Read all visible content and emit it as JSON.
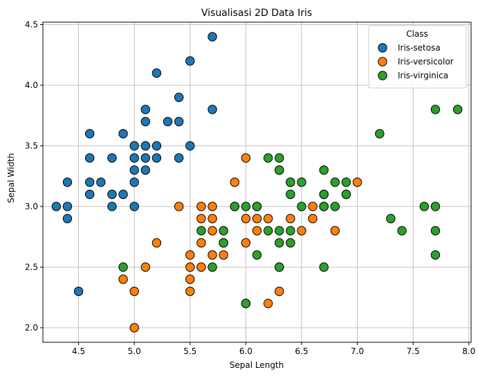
{
  "chart_data": {
    "type": "scatter",
    "title": "Visualisasi 2D Data Iris",
    "xlabel": "Sepal Length",
    "ylabel": "Sepal Width",
    "xlim": [
      4.18,
      8.02
    ],
    "ylim": [
      1.88,
      4.52
    ],
    "xticks": [
      "4.5",
      "5.0",
      "5.5",
      "6.0",
      "6.5",
      "7.0",
      "7.5",
      "8.0"
    ],
    "yticks": [
      "2.0",
      "2.5",
      "3.0",
      "3.5",
      "4.0",
      "4.5"
    ],
    "grid": true,
    "legend": {
      "title": "Class",
      "placement": "top-right"
    },
    "series": [
      {
        "name": "Iris-setosa",
        "color": "#1f77b4",
        "points": [
          [
            4.3,
            3.0
          ],
          [
            4.4,
            2.9
          ],
          [
            4.4,
            3.0
          ],
          [
            4.4,
            3.2
          ],
          [
            4.5,
            2.3
          ],
          [
            4.6,
            3.1
          ],
          [
            4.6,
            3.2
          ],
          [
            4.6,
            3.4
          ],
          [
            4.6,
            3.6
          ],
          [
            4.7,
            3.2
          ],
          [
            4.8,
            3.0
          ],
          [
            4.8,
            3.1
          ],
          [
            4.8,
            3.4
          ],
          [
            4.9,
            3.1
          ],
          [
            4.9,
            3.6
          ],
          [
            5.0,
            3.0
          ],
          [
            5.0,
            3.2
          ],
          [
            5.0,
            3.3
          ],
          [
            5.0,
            3.4
          ],
          [
            5.0,
            3.5
          ],
          [
            5.1,
            3.3
          ],
          [
            5.1,
            3.4
          ],
          [
            5.1,
            3.5
          ],
          [
            5.1,
            3.7
          ],
          [
            5.1,
            3.8
          ],
          [
            5.2,
            3.4
          ],
          [
            5.2,
            3.5
          ],
          [
            5.2,
            4.1
          ],
          [
            5.3,
            3.7
          ],
          [
            5.4,
            3.4
          ],
          [
            5.4,
            3.7
          ],
          [
            5.4,
            3.9
          ],
          [
            5.5,
            3.5
          ],
          [
            5.5,
            4.2
          ],
          [
            5.7,
            3.8
          ],
          [
            5.7,
            4.4
          ]
        ]
      },
      {
        "name": "Iris-versicolor",
        "color": "#ff7f0e",
        "points": [
          [
            4.9,
            2.4
          ],
          [
            5.0,
            2.0
          ],
          [
            5.0,
            2.3
          ],
          [
            5.1,
            2.5
          ],
          [
            5.2,
            2.7
          ],
          [
            5.4,
            3.0
          ],
          [
            5.5,
            2.3
          ],
          [
            5.5,
            2.4
          ],
          [
            5.5,
            2.5
          ],
          [
            5.5,
            2.6
          ],
          [
            5.6,
            2.5
          ],
          [
            5.6,
            2.7
          ],
          [
            5.6,
            2.9
          ],
          [
            5.6,
            3.0
          ],
          [
            5.7,
            2.6
          ],
          [
            5.7,
            2.8
          ],
          [
            5.7,
            2.9
          ],
          [
            5.7,
            3.0
          ],
          [
            5.8,
            2.6
          ],
          [
            5.8,
            2.7
          ],
          [
            5.9,
            3.0
          ],
          [
            5.9,
            3.2
          ],
          [
            6.0,
            2.2
          ],
          [
            6.0,
            2.7
          ],
          [
            6.0,
            2.9
          ],
          [
            6.0,
            3.4
          ],
          [
            6.1,
            2.8
          ],
          [
            6.1,
            2.9
          ],
          [
            6.1,
            3.0
          ],
          [
            6.2,
            2.2
          ],
          [
            6.2,
            2.9
          ],
          [
            6.3,
            2.3
          ],
          [
            6.3,
            2.5
          ],
          [
            6.3,
            3.3
          ],
          [
            6.4,
            2.9
          ],
          [
            6.4,
            3.2
          ],
          [
            6.5,
            2.8
          ],
          [
            6.6,
            2.9
          ],
          [
            6.6,
            3.0
          ],
          [
            6.7,
            3.0
          ],
          [
            6.7,
            3.1
          ],
          [
            6.8,
            2.8
          ],
          [
            6.9,
            3.1
          ],
          [
            7.0,
            3.2
          ]
        ]
      },
      {
        "name": "Iris-virginica",
        "color": "#2ca02c",
        "points": [
          [
            4.9,
            2.5
          ],
          [
            5.6,
            2.8
          ],
          [
            5.7,
            2.5
          ],
          [
            5.8,
            2.7
          ],
          [
            5.8,
            2.8
          ],
          [
            5.9,
            3.0
          ],
          [
            6.0,
            2.2
          ],
          [
            6.0,
            3.0
          ],
          [
            6.1,
            2.6
          ],
          [
            6.1,
            3.0
          ],
          [
            6.2,
            2.8
          ],
          [
            6.2,
            3.4
          ],
          [
            6.3,
            2.5
          ],
          [
            6.3,
            2.7
          ],
          [
            6.3,
            2.8
          ],
          [
            6.3,
            3.3
          ],
          [
            6.3,
            3.4
          ],
          [
            6.4,
            2.7
          ],
          [
            6.4,
            2.8
          ],
          [
            6.4,
            3.1
          ],
          [
            6.4,
            3.2
          ],
          [
            6.5,
            3.0
          ],
          [
            6.5,
            3.2
          ],
          [
            6.7,
            2.5
          ],
          [
            6.7,
            3.0
          ],
          [
            6.7,
            3.1
          ],
          [
            6.7,
            3.3
          ],
          [
            6.8,
            3.0
          ],
          [
            6.8,
            3.2
          ],
          [
            6.9,
            3.1
          ],
          [
            6.9,
            3.2
          ],
          [
            7.2,
            3.6
          ],
          [
            7.3,
            2.9
          ],
          [
            7.4,
            2.8
          ],
          [
            7.6,
            3.0
          ],
          [
            7.7,
            2.6
          ],
          [
            7.7,
            2.8
          ],
          [
            7.7,
            3.0
          ],
          [
            7.7,
            3.8
          ],
          [
            7.9,
            3.8
          ]
        ]
      }
    ]
  }
}
